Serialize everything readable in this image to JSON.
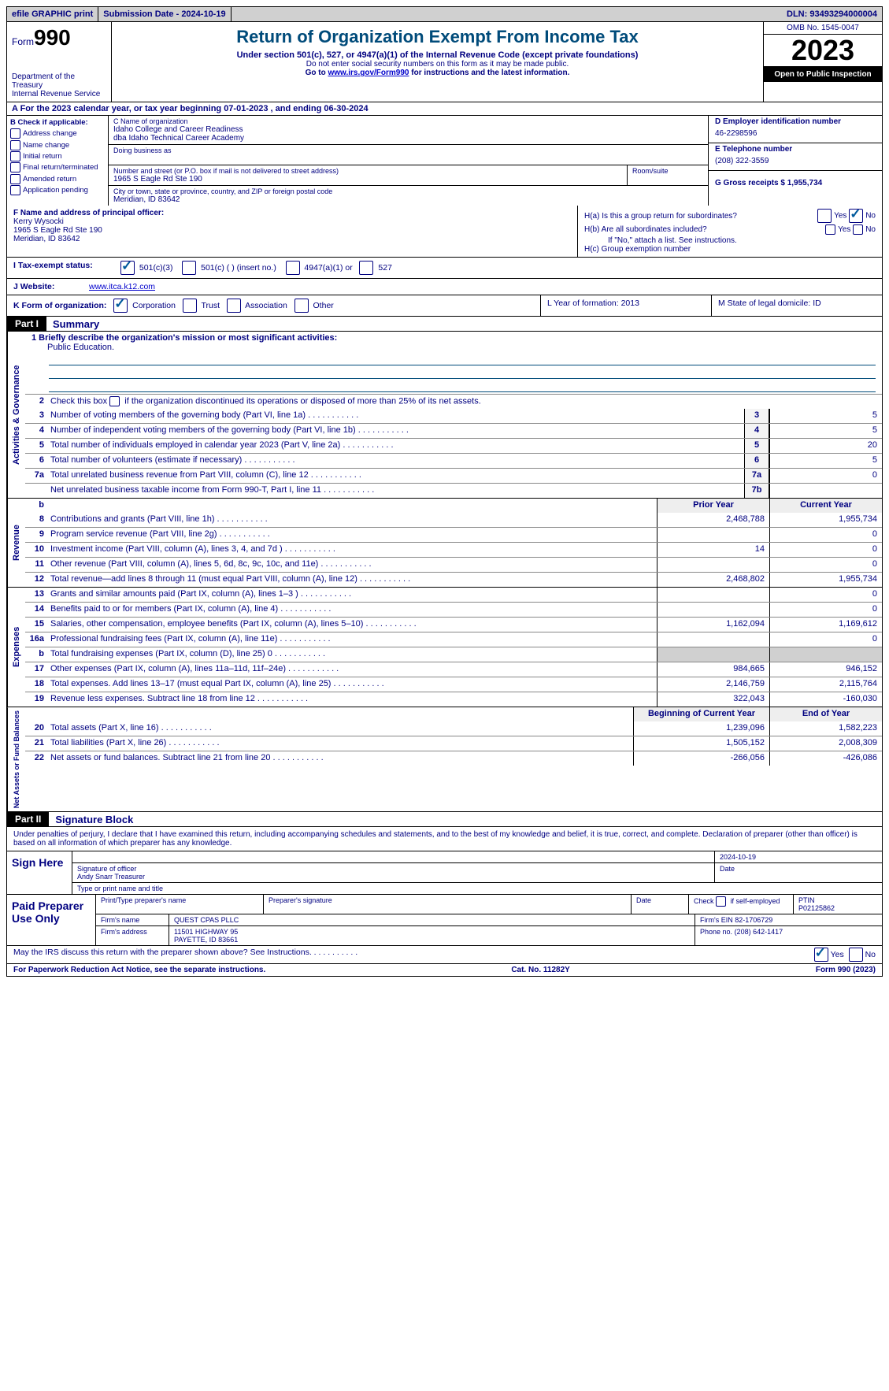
{
  "topbar": {
    "efile": "efile GRAPHIC print",
    "submission": "Submission Date - 2024-10-19",
    "dln": "DLN: 93493294000004"
  },
  "header": {
    "form_prefix": "Form",
    "form_number": "990",
    "dept": "Department of the Treasury\nInternal Revenue Service",
    "title": "Return of Organization Exempt From Income Tax",
    "subtitle": "Under section 501(c), 527, or 4947(a)(1) of the Internal Revenue Code (except private foundations)",
    "note1": "Do not enter social security numbers on this form as it may be made public.",
    "note2_prefix": "Go to ",
    "note2_link": "www.irs.gov/Form990",
    "note2_suffix": " for instructions and the latest information.",
    "omb": "OMB No. 1545-0047",
    "year": "2023",
    "open": "Open to Public Inspection"
  },
  "row_a": "A For the 2023 calendar year, or tax year beginning 07-01-2023   , and ending 06-30-2024",
  "box_b": {
    "title": "B Check if applicable:",
    "items": [
      "Address change",
      "Name change",
      "Initial return",
      "Final return/terminated",
      "Amended return",
      "Application pending"
    ]
  },
  "box_c": {
    "name_lbl": "C Name of organization",
    "name1": "Idaho College and Career Readiness",
    "name2": "dba Idaho Technical Career Academy",
    "dba_lbl": "Doing business as",
    "addr_lbl": "Number and street (or P.O. box if mail is not delivered to street address)",
    "room_lbl": "Room/suite",
    "addr": "1965 S Eagle Rd Ste 190",
    "city_lbl": "City or town, state or province, country, and ZIP or foreign postal code",
    "city": "Meridian, ID  83642"
  },
  "box_d": {
    "ein_lbl": "D Employer identification number",
    "ein": "46-2298596",
    "phone_lbl": "E Telephone number",
    "phone": "(208) 322-3559",
    "gross_lbl": "G Gross receipts $ 1,955,734"
  },
  "box_f": {
    "lbl": "F  Name and address of principal officer:",
    "name": "Kerry Wysocki",
    "addr1": "1965 S Eagle Rd Ste 190",
    "addr2": "Meridian, ID  83642"
  },
  "box_h": {
    "ha": "H(a)  Is this a group return for subordinates?",
    "hb": "H(b)  Are all subordinates included?",
    "hb_note": "If \"No,\" attach a list. See instructions.",
    "hc": "H(c)  Group exemption number"
  },
  "row_i": {
    "lbl": "I   Tax-exempt status:",
    "o1": "501(c)(3)",
    "o2": "501(c) (  ) (insert no.)",
    "o3": "4947(a)(1) or",
    "o4": "527"
  },
  "row_j": {
    "lbl": "J   Website:",
    "val": "www.itca.k12.com"
  },
  "row_k": {
    "lbl": "K Form of organization:",
    "opts": [
      "Corporation",
      "Trust",
      "Association",
      "Other"
    ],
    "l": "L Year of formation: 2013",
    "m": "M State of legal domicile: ID"
  },
  "part1": {
    "header": "Part I",
    "title": "Summary",
    "mission_lbl": "1   Briefly describe the organization's mission or most significant activities:",
    "mission": "Public Education.",
    "line2": "Check this box         if the organization discontinued its operations or disposed of more than 25% of its net assets."
  },
  "sides": {
    "gov": "Activities & Governance",
    "rev": "Revenue",
    "exp": "Expenses",
    "net": "Net Assets or Fund Balances"
  },
  "gov_lines": [
    {
      "n": "3",
      "d": "Number of voting members of the governing body (Part VI, line 1a)",
      "box": "3",
      "v": "5"
    },
    {
      "n": "4",
      "d": "Number of independent voting members of the governing body (Part VI, line 1b)",
      "box": "4",
      "v": "5"
    },
    {
      "n": "5",
      "d": "Total number of individuals employed in calendar year 2023 (Part V, line 2a)",
      "box": "5",
      "v": "20"
    },
    {
      "n": "6",
      "d": "Total number of volunteers (estimate if necessary)",
      "box": "6",
      "v": "5"
    },
    {
      "n": "7a",
      "d": "Total unrelated business revenue from Part VIII, column (C), line 12",
      "box": "7a",
      "v": "0"
    },
    {
      "n": "",
      "d": "Net unrelated business taxable income from Form 990-T, Part I, line 11",
      "box": "7b",
      "v": ""
    }
  ],
  "col_headers": {
    "b": "b",
    "prior": "Prior Year",
    "current": "Current Year"
  },
  "rev_lines": [
    {
      "n": "8",
      "d": "Contributions and grants (Part VIII, line 1h)",
      "p": "2,468,788",
      "c": "1,955,734"
    },
    {
      "n": "9",
      "d": "Program service revenue (Part VIII, line 2g)",
      "p": "",
      "c": "0"
    },
    {
      "n": "10",
      "d": "Investment income (Part VIII, column (A), lines 3, 4, and 7d )",
      "p": "14",
      "c": "0"
    },
    {
      "n": "11",
      "d": "Other revenue (Part VIII, column (A), lines 5, 6d, 8c, 9c, 10c, and 11e)",
      "p": "",
      "c": "0"
    },
    {
      "n": "12",
      "d": "Total revenue—add lines 8 through 11 (must equal Part VIII, column (A), line 12)",
      "p": "2,468,802",
      "c": "1,955,734"
    }
  ],
  "exp_lines": [
    {
      "n": "13",
      "d": "Grants and similar amounts paid (Part IX, column (A), lines 1–3 )",
      "p": "",
      "c": "0"
    },
    {
      "n": "14",
      "d": "Benefits paid to or for members (Part IX, column (A), line 4)",
      "p": "",
      "c": "0"
    },
    {
      "n": "15",
      "d": "Salaries, other compensation, employee benefits (Part IX, column (A), lines 5–10)",
      "p": "1,162,094",
      "c": "1,169,612"
    },
    {
      "n": "16a",
      "d": "Professional fundraising fees (Part IX, column (A), line 11e)",
      "p": "",
      "c": "0"
    },
    {
      "n": "b",
      "d": "Total fundraising expenses (Part IX, column (D), line 25) 0",
      "p": "shade",
      "c": "shade"
    },
    {
      "n": "17",
      "d": "Other expenses (Part IX, column (A), lines 11a–11d, 11f–24e)",
      "p": "984,665",
      "c": "946,152"
    },
    {
      "n": "18",
      "d": "Total expenses. Add lines 13–17 (must equal Part IX, column (A), line 25)",
      "p": "2,146,759",
      "c": "2,115,764"
    },
    {
      "n": "19",
      "d": "Revenue less expenses. Subtract line 18 from line 12",
      "p": "322,043",
      "c": "-160,030"
    }
  ],
  "net_headers": {
    "begin": "Beginning of Current Year",
    "end": "End of Year"
  },
  "net_lines": [
    {
      "n": "20",
      "d": "Total assets (Part X, line 16)",
      "p": "1,239,096",
      "c": "1,582,223"
    },
    {
      "n": "21",
      "d": "Total liabilities (Part X, line 26)",
      "p": "1,505,152",
      "c": "2,008,309"
    },
    {
      "n": "22",
      "d": "Net assets or fund balances. Subtract line 21 from line 20",
      "p": "-266,056",
      "c": "-426,086"
    }
  ],
  "part2": {
    "header": "Part II",
    "title": "Signature Block",
    "decl": "Under penalties of perjury, I declare that I have examined this return, including accompanying schedules and statements, and to the best of my knowledge and belief, it is true, correct, and complete. Declaration of preparer (other than officer) is based on all information of which preparer has any knowledge."
  },
  "sign": {
    "here": "Sign Here",
    "sig_lbl": "Signature of officer",
    "date_lbl": "Date",
    "date": "2024-10-19",
    "name": "Andy Snarr  Treasurer",
    "name_lbl": "Type or print name and title"
  },
  "paid": {
    "lbl": "Paid Preparer Use Only",
    "print_lbl": "Print/Type preparer's name",
    "sig_lbl": "Preparer's signature",
    "date_lbl": "Date",
    "check_lbl": "Check         if self-employed",
    "ptin_lbl": "PTIN",
    "ptin": "P02125862",
    "firm_name_lbl": "Firm's name",
    "firm_name": "QUEST CPAS PLLC",
    "firm_ein_lbl": "Firm's EIN",
    "firm_ein": "82-1706729",
    "firm_addr_lbl": "Firm's address",
    "firm_addr1": "11501 HIGHWAY 95",
    "firm_addr2": "PAYETTE, ID  83661",
    "phone_lbl": "Phone no.",
    "phone": "(208) 642-1417"
  },
  "may_irs": "May the IRS discuss this return with the preparer shown above? See Instructions.    .    .    .    .    .    .    .    .    .    .",
  "footer": {
    "left": "For Paperwork Reduction Act Notice, see the separate instructions.",
    "mid": "Cat. No. 11282Y",
    "right_prefix": "Form ",
    "right_form": "990",
    "right_year": " (2023)"
  }
}
